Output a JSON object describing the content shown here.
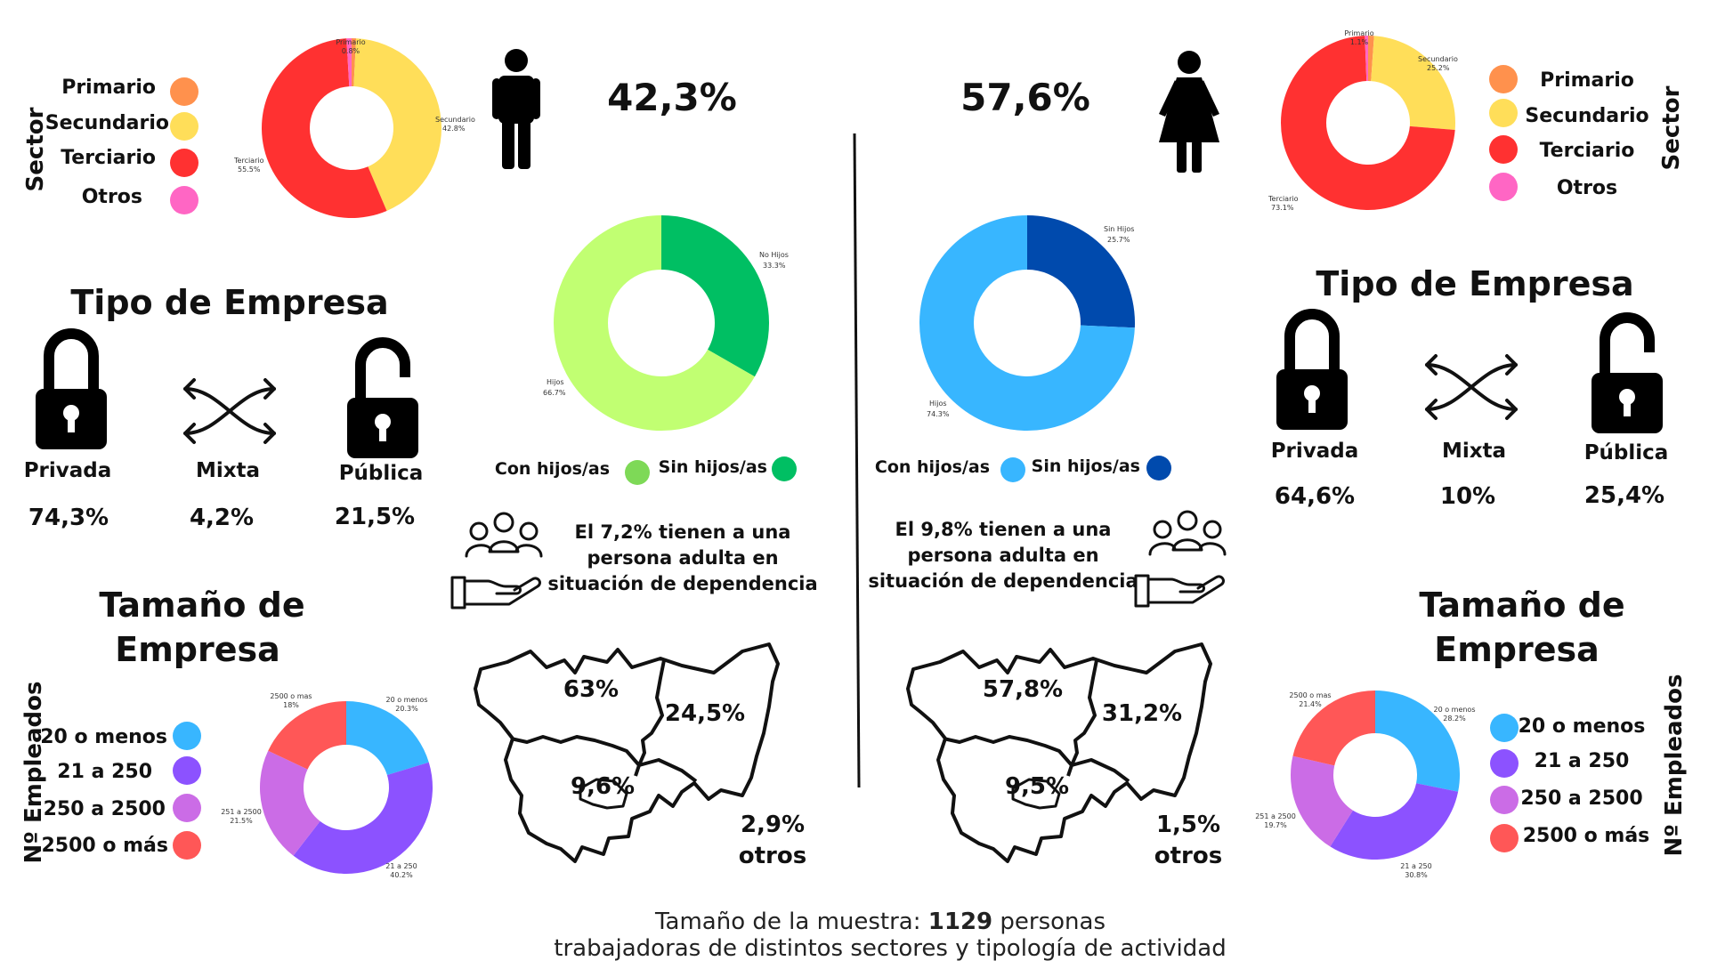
{
  "labels": {
    "sector": "Sector",
    "empleados": "Nº Empleados",
    "tipo_empresa": "Tipo de Empresa",
    "tamano_line1": "Tamaño de",
    "tamano_line2": "Empresa"
  },
  "colors": {
    "primario": "#FF914D",
    "secundario": "#FFDE59",
    "terciario": "#FF3131",
    "otros": "#FF66C4",
    "hijos_m": "#C1FF72",
    "sin_hijos_m": "#00BF63",
    "hijos_f": "#38B6FF",
    "sin_hijos_f": "#004AAD",
    "size_20": "#38B6FF",
    "size_21_250": "#8C52FF",
    "size_250_2500": "#CB6CE6",
    "size_2500": "#FF5757"
  },
  "legends": {
    "sector": [
      "Primario",
      "Secundario",
      "Terciario",
      "Otros"
    ],
    "size": [
      "20 o menos",
      "21 a 250",
      "250 a 2500",
      "2500 o más"
    ],
    "hijos_con": "Con hijos/as",
    "hijos_sin": "Sin hijos/as"
  },
  "men": {
    "percent": "42,3%",
    "tipo": [
      {
        "name": "Privada",
        "value": "74,3%"
      },
      {
        "name": "Mixta",
        "value": "4,2%"
      },
      {
        "name": "Pública",
        "value": "21,5%"
      }
    ],
    "dependencia": [
      "El 7,2% tienen a una",
      "persona adulta en",
      "situación de dependencia"
    ],
    "map": {
      "a": "63%",
      "b": "24,5%",
      "c": "9,6%",
      "otros_pct": "2,9%",
      "otros_label": "otros"
    }
  },
  "women": {
    "percent": "57,6%",
    "tipo": [
      {
        "name": "Privada",
        "value": "64,6%"
      },
      {
        "name": "Mixta",
        "value": "10%"
      },
      {
        "name": "Pública",
        "value": "25,4%"
      }
    ],
    "dependencia": [
      "El 9,8% tienen a una",
      "persona adulta en",
      "situación de dependencia"
    ],
    "map": {
      "a": "57,8%",
      "b": "31,2%",
      "c": "9,5%",
      "otros_pct": "1,5%",
      "otros_label": "otros"
    }
  },
  "footer": {
    "prefix": "Tamaño de la muestra:",
    "count": "1129",
    "suffix": "personas",
    "line2": "trabajadoras de distintos sectores y tipología de actividad"
  },
  "chart_data": [
    {
      "type": "pie",
      "id": "sector-men",
      "slices": [
        {
          "label": "Primario",
          "value": 0.8,
          "display": "0.8%",
          "color": "#FF914D"
        },
        {
          "label": "Secundario",
          "value": 42.8,
          "display": "42.8%",
          "color": "#FFDE59"
        },
        {
          "label": "Terciario",
          "value": 55.5,
          "display": "55.5%",
          "color": "#FF3131"
        },
        {
          "label": "Otros",
          "value": 0.9,
          "display": "",
          "color": "#FF66C4"
        }
      ]
    },
    {
      "type": "pie",
      "id": "sector-women",
      "slices": [
        {
          "label": "Primario",
          "value": 1.1,
          "display": "1.1%",
          "color": "#FF914D"
        },
        {
          "label": "Secundario",
          "value": 25.2,
          "display": "25.2%",
          "color": "#FFDE59"
        },
        {
          "label": "Terciario",
          "value": 73.1,
          "display": "73.1%",
          "color": "#FF3131"
        },
        {
          "label": "Otros",
          "value": 0.6,
          "display": "",
          "color": "#FF66C4"
        }
      ]
    },
    {
      "type": "pie",
      "id": "hijos-men",
      "slices": [
        {
          "label": "No Hijos",
          "value": 33.3,
          "display": "33.3%",
          "color": "#00BF63"
        },
        {
          "label": "Hijos",
          "value": 66.7,
          "display": "66.7%",
          "color": "#C1FF72"
        }
      ]
    },
    {
      "type": "pie",
      "id": "hijos-women",
      "slices": [
        {
          "label": "Sin Hijos",
          "value": 25.7,
          "display": "25.7%",
          "color": "#004AAD"
        },
        {
          "label": "Hijos",
          "value": 74.3,
          "display": "74.3%",
          "color": "#38B6FF"
        }
      ]
    },
    {
      "type": "pie",
      "id": "size-men",
      "slices": [
        {
          "label": "20 o menos",
          "value": 20.3,
          "display": "20.3%",
          "color": "#38B6FF"
        },
        {
          "label": "21 a 250",
          "value": 40.2,
          "display": "40.2%",
          "color": "#8C52FF"
        },
        {
          "label": "251 a 2500",
          "value": 21.5,
          "display": "21.5%",
          "color": "#CB6CE6"
        },
        {
          "label": "2500 o mas",
          "value": 18,
          "display": "18%",
          "color": "#FF5757"
        }
      ]
    },
    {
      "type": "pie",
      "id": "size-women",
      "slices": [
        {
          "label": "20 o menos",
          "value": 28.2,
          "display": "28.2%",
          "color": "#38B6FF"
        },
        {
          "label": "21 a 250",
          "value": 30.8,
          "display": "30.8%",
          "color": "#8C52FF"
        },
        {
          "label": "251 a 2500",
          "value": 19.7,
          "display": "19.7%",
          "color": "#CB6CE6"
        },
        {
          "label": "2500 o mas",
          "value": 21.4,
          "display": "21.4%",
          "color": "#FF5757"
        }
      ]
    }
  ]
}
